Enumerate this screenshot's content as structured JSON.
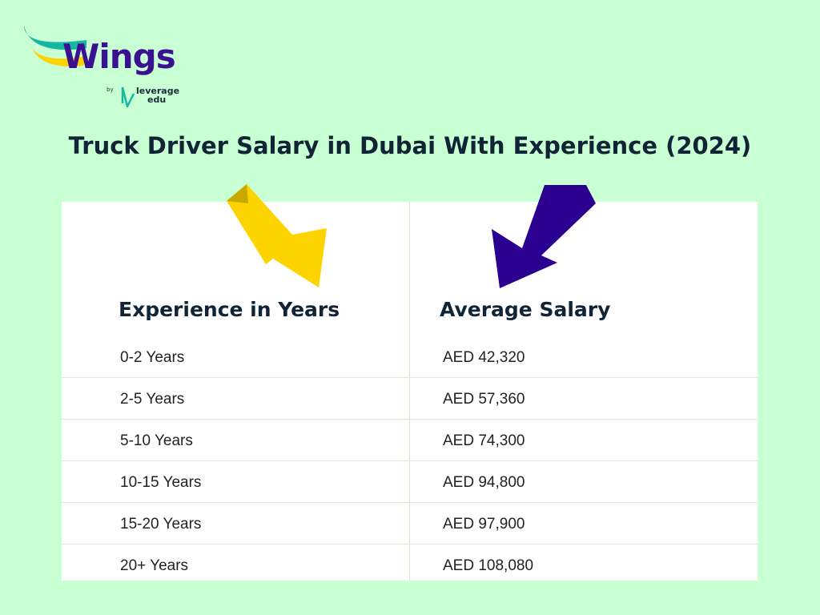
{
  "brand": {
    "name": "Wings",
    "by": "by",
    "sub_brand_line1": "leverage",
    "sub_brand_line2": "edu"
  },
  "title": "Truck Driver Salary in Dubai With Experience (2024)",
  "table": {
    "headers": [
      "Experience in Years",
      "Average Salary"
    ],
    "rows": [
      {
        "experience": "0-2 Years",
        "salary": "AED 42,320"
      },
      {
        "experience": "2-5 Years",
        "salary": "AED 57,360"
      },
      {
        "experience": "5-10 Years",
        "salary": "AED 74,300"
      },
      {
        "experience": "10-15 Years",
        "salary": "AED 94,800"
      },
      {
        "experience": "15-20 Years",
        "salary": "AED 97,900"
      },
      {
        "experience": "20+ Years",
        "salary": "AED 108,080"
      }
    ]
  },
  "colors": {
    "background": "#c8ffd3",
    "arrow_left": "#fdd300",
    "arrow_right": "#2b0091",
    "brand_purple": "#3a1190",
    "brand_teal": "#15b7a3",
    "brand_yellow": "#fdd300"
  },
  "icons": [
    "wings-logo-icon",
    "leverage-edu-logo-icon",
    "yellow-arrow-icon",
    "purple-arrow-icon"
  ]
}
